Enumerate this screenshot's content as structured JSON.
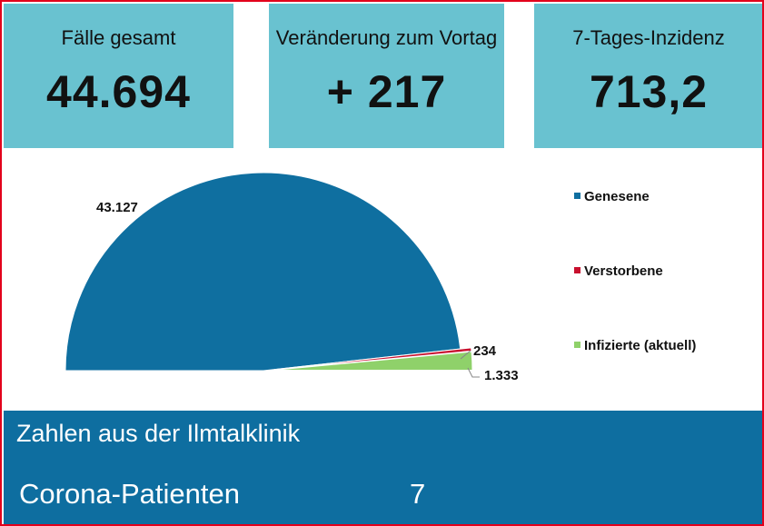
{
  "stats": [
    {
      "title": "Fälle gesamt",
      "value": "44.694"
    },
    {
      "title": "Veränderung zum Vortag",
      "value": "+ 217"
    },
    {
      "title": "7-Tages-Inzidenz",
      "value": "713,2"
    }
  ],
  "chart_data": {
    "type": "pie",
    "subtype": "half-pie",
    "categories": [
      "Genesene",
      "Verstorbene",
      "Infizierte (aktuell)"
    ],
    "values": [
      43127,
      234,
      1333
    ],
    "labels": [
      "43.127",
      "234",
      "1.333"
    ],
    "colors": [
      "#0f6fa0",
      "#c8102e",
      "#8fd16a"
    ],
    "legend_position": "right"
  },
  "bottom": {
    "title": "Zahlen aus der Ilmtalklinik",
    "label": "Corona-Patienten",
    "value": "7"
  }
}
